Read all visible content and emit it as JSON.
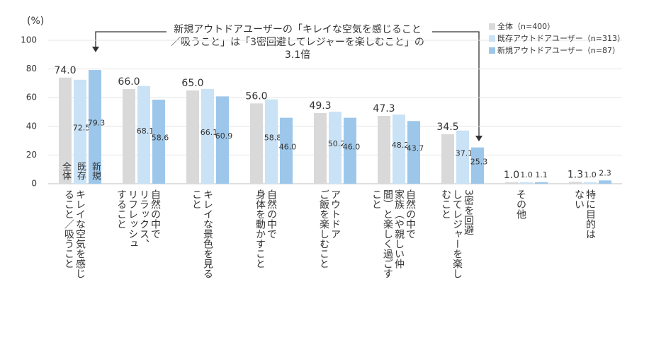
{
  "chart_data": {
    "type": "bar",
    "annotation": "新規アウトドアユーザーの「キレイな空気を感じること\n／吸うこと」は「3密回避してレジャーを楽しむこと」の\n3.1倍",
    "y_label": "(%)",
    "categories": [
      "キレイな空気を感じ\nること／吸うこと",
      "自然の中で\nリラックス、\nリフレッシュ\nすること",
      "キレイな景色を見る\nこと",
      "自然の中で\n身体を動かすこと",
      "アウトドア\nご飯を楽しむこと",
      "自然の中で\n家族（や親しい仲\n間）と楽しく過ごす\nこと",
      "3密を回避\nしてレジャーを楽し\nむこと",
      "その他",
      "特に目的は\nない"
    ],
    "series": [
      {
        "name": "全体（n=400）",
        "short_name": "全体",
        "color": "#d9d9d9",
        "values": [
          74.0,
          66.0,
          65.0,
          56.0,
          49.3,
          47.3,
          34.5,
          1.0,
          1.3
        ],
        "value_labels": [
          "74.0",
          "66.0",
          "65.0",
          "56.0",
          "49.3",
          "47.3",
          "34.5",
          "1.0",
          "1.3"
        ]
      },
      {
        "name": "既存アウトドアユーザー（n=313）",
        "short_name": "既存",
        "color": "#c9e2f6",
        "values": [
          72.5,
          68.1,
          66.1,
          58.8,
          50.2,
          48.2,
          37.1,
          1.0,
          1.0
        ],
        "value_labels": [
          "72.5",
          "68.1",
          "66.1",
          "58.8",
          "50.2",
          "48.2",
          "37.1",
          "1.0",
          "1.0"
        ]
      },
      {
        "name": "新規アウトドアユーザー（n=87）",
        "short_name": "新規",
        "color": "#9dc7ea",
        "values": [
          79.3,
          58.6,
          60.9,
          46.0,
          46.0,
          43.7,
          25.3,
          1.1,
          2.3
        ],
        "value_labels": [
          "79.3",
          "58.6",
          "60.9",
          "46.0",
          "46.0",
          "43.7",
          "25.3",
          "1.1",
          "2.3"
        ]
      }
    ],
    "ylim": [
      0,
      100
    ],
    "yticks": [
      0,
      20,
      40,
      60,
      80,
      100
    ],
    "grid": true,
    "legend": "top-right"
  }
}
